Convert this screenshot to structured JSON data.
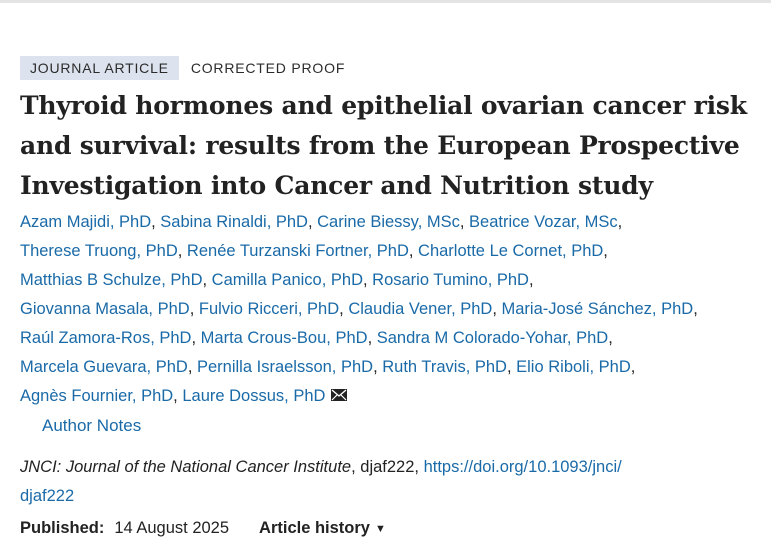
{
  "article": {
    "type_badge": "JOURNAL ARTICLE",
    "status_badge": "CORRECTED PROOF",
    "title": "Thyroid hormones and epithelial ovarian cancer risk and survival: results from the European Prospective Investigation into Cancer and Nutrition study",
    "authors": [
      "Azam Majidi, PhD",
      "Sabina Rinaldi, PhD",
      "Carine Biessy, MSc",
      "Beatrice Vozar, MSc",
      "Therese Truong, PhD",
      "Renée Turzanski Fortner, PhD",
      "Charlotte Le Cornet, PhD",
      "Matthias B Schulze, PhD",
      "Camilla Panico, PhD",
      "Rosario Tumino, PhD",
      "Giovanna Masala, PhD",
      "Fulvio Ricceri, PhD",
      "Claudia Vener, PhD",
      "Maria-José Sánchez, PhD",
      "Raúl Zamora-Ros, PhD",
      "Marta Crous-Bou, PhD",
      "Sandra M Colorado-Yohar, PhD",
      "Marcela Guevara, PhD",
      "Pernilla Israelsson, PhD",
      "Ruth Travis, PhD",
      "Elio Riboli, PhD",
      "Agnès Fournier, PhD",
      "Laure Dossus, PhD"
    ],
    "author_notes_label": "Author Notes",
    "journal_name": "JNCI: Journal of the National Cancer Institute",
    "article_id": ", djaf222, ",
    "doi_line1": "https://doi.org/10.1093/jnci/",
    "doi_line2": "djaf222",
    "published_label": "Published:",
    "published_date": "14 August 2025",
    "history_label": "Article history",
    "icons": {
      "mail": "envelope-icon",
      "caret": "caret-down-icon"
    },
    "colors": {
      "link": "#1a6aa8",
      "badge_bg": "#dde3ee"
    }
  }
}
